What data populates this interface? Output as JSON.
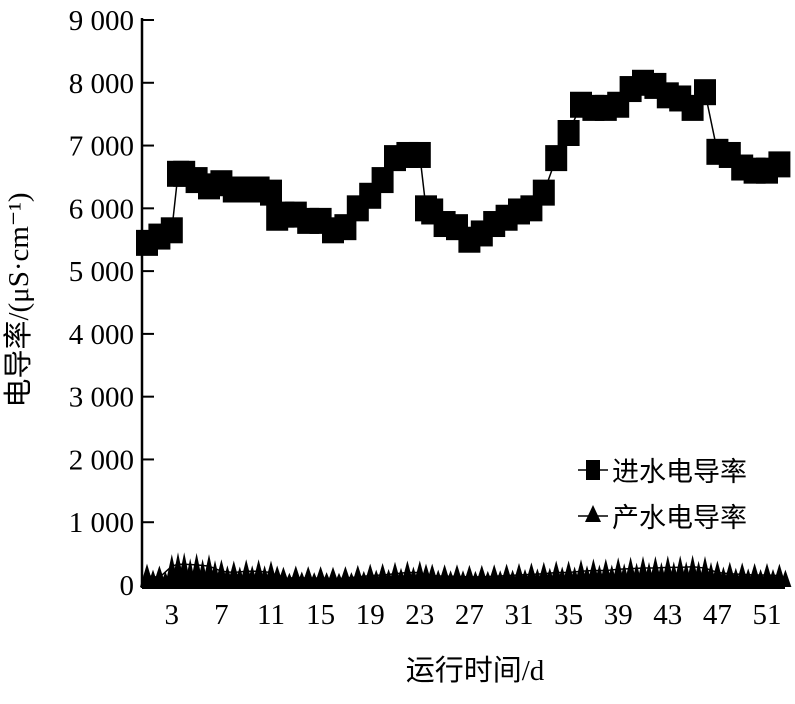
{
  "chart_data": {
    "type": "line",
    "xlabel": "运行时间/d",
    "ylabel": "电导率/(μS·cm⁻¹)",
    "ylim": [
      0,
      9000
    ],
    "xlim": [
      1,
      52
    ],
    "yticks": [
      0,
      1000,
      2000,
      3000,
      4000,
      5000,
      6000,
      7000,
      8000,
      9000
    ],
    "ytick_labels": [
      "0",
      "1 000",
      "2 000",
      "3 000",
      "4 000",
      "5 000",
      "6 000",
      "7 000",
      "8 000",
      "9 000"
    ],
    "xticks": [
      3,
      7,
      11,
      15,
      19,
      23,
      27,
      31,
      35,
      39,
      43,
      47,
      51
    ],
    "xtick_labels": [
      "3",
      "7",
      "11",
      "15",
      "19",
      "23",
      "27",
      "31",
      "35",
      "39",
      "43",
      "47",
      "51"
    ],
    "grid": false,
    "legend_position": "bottom-right",
    "x": [
      1,
      2,
      3,
      3.5,
      4,
      5,
      6,
      7,
      8,
      9,
      10,
      11,
      11.5,
      12,
      13,
      14,
      15,
      16,
      17,
      18,
      19,
      20,
      21,
      22,
      23,
      23.5,
      24,
      25,
      26,
      27,
      28,
      29,
      30,
      31,
      32,
      33,
      34,
      35,
      36,
      37,
      38,
      39,
      40,
      41,
      42,
      43,
      44,
      45,
      46,
      47,
      48,
      49,
      50,
      51,
      52
    ],
    "series": [
      {
        "name": "进水电导率",
        "marker": "square",
        "values": [
          5450,
          5550,
          5650,
          6550,
          6550,
          6450,
          6350,
          6400,
          6300,
          6300,
          6300,
          6250,
          5850,
          5900,
          5900,
          5800,
          5800,
          5650,
          5700,
          6000,
          6200,
          6450,
          6800,
          6850,
          6850,
          6000,
          5950,
          5750,
          5700,
          5500,
          5600,
          5750,
          5850,
          5950,
          6000,
          6250,
          6800,
          7200,
          7650,
          7600,
          7600,
          7650,
          7900,
          8000,
          7950,
          7800,
          7750,
          7600,
          7850,
          6900,
          6850,
          6650,
          6600,
          6600,
          6700
        ]
      },
      {
        "name": "产水电导率",
        "marker": "triangle",
        "values": [
          150,
          120,
          300,
          330,
          330,
          320,
          300,
          220,
          200,
          220,
          220,
          200,
          120,
          100,
          120,
          110,
          110,
          100,
          110,
          130,
          150,
          160,
          180,
          200,
          200,
          150,
          150,
          140,
          140,
          130,
          130,
          140,
          150,
          160,
          170,
          180,
          200,
          200,
          220,
          230,
          230,
          250,
          260,
          270,
          270,
          280,
          280,
          290,
          270,
          200,
          180,
          170,
          160,
          160,
          150
        ]
      }
    ]
  }
}
